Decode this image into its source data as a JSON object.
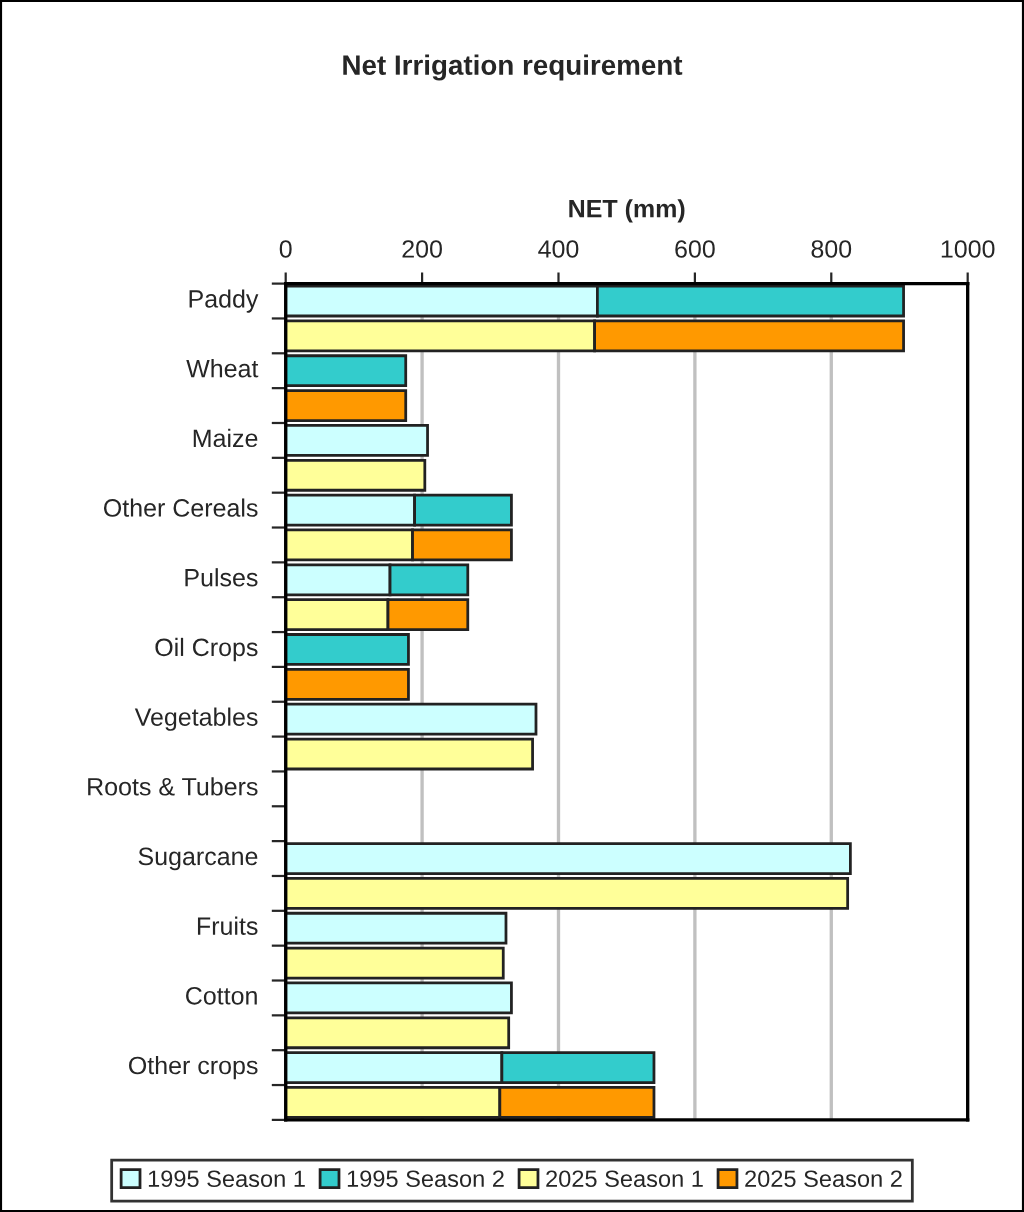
{
  "chart_data": {
    "type": "bar",
    "orientation": "horizontal",
    "stacked": true,
    "title": "Net Irrigation requirement",
    "xlabel": "NET (mm)",
    "categories": [
      "Paddy",
      null,
      "Wheat",
      null,
      "Maize",
      null,
      "Other Cereals",
      null,
      "Pulses",
      null,
      "Oil Crops",
      null,
      "Vegetables",
      null,
      "Roots & Tubers",
      null,
      "Sugarcane",
      null,
      "Fruits",
      null,
      "Cotton",
      null,
      "Other crops",
      null
    ],
    "series": [
      {
        "name": "1995 Season 1",
        "color": "#ccffff",
        "values": [
          457,
          null,
          null,
          null,
          208,
          null,
          189,
          null,
          153,
          null,
          null,
          null,
          367,
          null,
          null,
          null,
          828,
          null,
          323,
          null,
          331,
          null,
          317,
          null
        ]
      },
      {
        "name": "1995 Season 2",
        "color": "#33cccc",
        "values": [
          449,
          null,
          176,
          null,
          null,
          null,
          142,
          null,
          114,
          null,
          180,
          null,
          null,
          null,
          null,
          null,
          null,
          null,
          null,
          null,
          null,
          null,
          223,
          null
        ]
      },
      {
        "name": "2025 Season 1",
        "color": "#ffff99",
        "values": [
          null,
          453,
          null,
          null,
          null,
          204,
          null,
          186,
          null,
          150,
          null,
          null,
          null,
          362,
          null,
          null,
          null,
          824,
          null,
          319,
          null,
          327,
          null,
          314
        ]
      },
      {
        "name": "2025 Season 2",
        "color": "#ff9900",
        "values": [
          null,
          453,
          null,
          176,
          null,
          null,
          null,
          145,
          null,
          117,
          null,
          180,
          null,
          null,
          null,
          null,
          null,
          null,
          null,
          null,
          null,
          null,
          null,
          226
        ]
      }
    ],
    "xlim": [
      0,
      1000
    ],
    "xticks": [
      0,
      200,
      400,
      600,
      800,
      1000
    ],
    "grid": "x",
    "legend": "bottom"
  }
}
